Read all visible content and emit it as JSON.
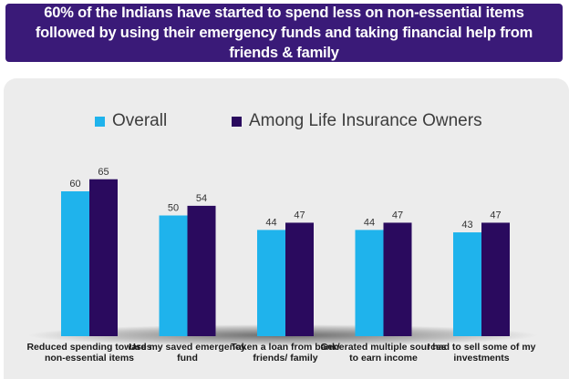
{
  "title": "60% of the Indians have started to spend less on non-essential items followed by using their emergency funds and taking financial help from friends & family",
  "colors": {
    "banner": "#3a1a78",
    "overall": "#1fb3ec",
    "owners": "#2a0a5e",
    "panel": "#ececec"
  },
  "chart_data": {
    "type": "bar",
    "categories": [
      "Reduced spending towards non-essential items",
      "Use my saved emergency fund",
      "Taken a loan from bank/ friends/ family",
      "Generated multiple sources to earn income",
      "I had to sell some of my investments"
    ],
    "series": [
      {
        "name": "Overall",
        "values": [
          60,
          50,
          44,
          44,
          43
        ]
      },
      {
        "name": "Among Life Insurance Owners",
        "values": [
          65,
          54,
          47,
          47,
          47
        ]
      }
    ],
    "title": "",
    "xlabel": "",
    "ylabel": "",
    "ylim": [
      0,
      100
    ],
    "grid": false,
    "legend": "top"
  }
}
